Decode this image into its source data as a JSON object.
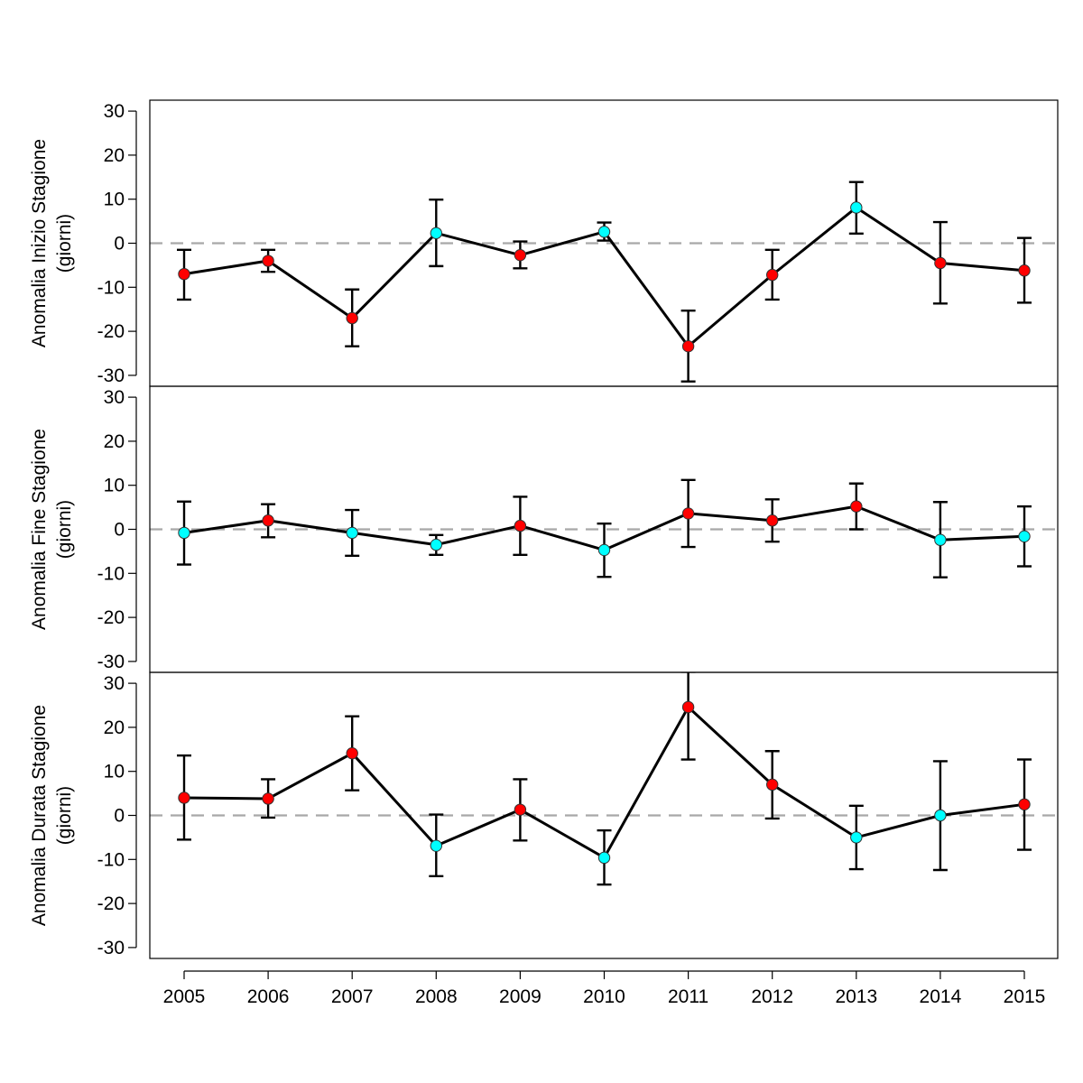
{
  "chart_data": [
    {
      "type": "line",
      "ylabel": "Anomalia Inizio Stagione",
      "ylabel_sub": "(giorni)",
      "ylim": [
        -30,
        30
      ],
      "yticks": [
        "30",
        "20",
        "10",
        "0",
        "-10",
        "-20",
        "-30"
      ],
      "x": [
        "2005",
        "2006",
        "2007",
        "2008",
        "2009",
        "2010",
        "2011",
        "2012",
        "2013",
        "2014",
        "2015"
      ],
      "values": [
        -7,
        -4,
        -17,
        2.3,
        -2.7,
        2.6,
        -23.4,
        -7.2,
        8.1,
        -4.5,
        -6.2
      ],
      "err_low": [
        -12.8,
        -6.5,
        -23.4,
        -5.2,
        -5.7,
        0.6,
        -31.4,
        -12.8,
        2.2,
        -13.7,
        -13.5
      ],
      "err_high": [
        -1.5,
        -1.5,
        -10.5,
        9.9,
        0.4,
        4.7,
        -15.3,
        -1.5,
        13.9,
        4.8,
        1.2
      ],
      "colors": [
        "#ff0000",
        "#ff0000",
        "#ff0000",
        "#00ffff",
        "#ff0000",
        "#00ffff",
        "#ff0000",
        "#ff0000",
        "#00ffff",
        "#ff0000",
        "#ff0000"
      ]
    },
    {
      "type": "line",
      "ylabel": "Anomalia Fine Stagione",
      "ylabel_sub": "(giorni)",
      "ylim": [
        -30,
        30
      ],
      "yticks": [
        "30",
        "20",
        "10",
        "0",
        "-10",
        "-20",
        "-30"
      ],
      "x": [
        "2005",
        "2006",
        "2007",
        "2008",
        "2009",
        "2010",
        "2011",
        "2012",
        "2013",
        "2014",
        "2015"
      ],
      "values": [
        -0.8,
        2,
        -0.8,
        -3.5,
        0.8,
        -4.7,
        3.6,
        2,
        5.2,
        -2.4,
        -1.6
      ],
      "err_low": [
        -8,
        -1.8,
        -6,
        -5.8,
        -5.8,
        -10.8,
        -4,
        -2.8,
        0,
        -10.9,
        -8.4
      ],
      "err_high": [
        6.3,
        5.7,
        4.4,
        -1.3,
        7.4,
        1.3,
        11.2,
        6.8,
        10.4,
        6.2,
        5.2
      ],
      "colors": [
        "#00ffff",
        "#ff0000",
        "#00ffff",
        "#00ffff",
        "#ff0000",
        "#00ffff",
        "#ff0000",
        "#ff0000",
        "#ff0000",
        "#00ffff",
        "#00ffff"
      ]
    },
    {
      "type": "line",
      "ylabel": "Anomalia Durata Stagione",
      "ylabel_sub": "(giorni)",
      "ylim": [
        -30,
        30
      ],
      "yticks": [
        "30",
        "20",
        "10",
        "0",
        "-10",
        "-20",
        "-30"
      ],
      "x": [
        "2005",
        "2006",
        "2007",
        "2008",
        "2009",
        "2010",
        "2011",
        "2012",
        "2013",
        "2014",
        "2015"
      ],
      "values": [
        4,
        3.8,
        14.1,
        -6.9,
        1.3,
        -9.6,
        24.6,
        7,
        -5,
        0,
        2.5
      ],
      "err_low": [
        -5.5,
        -0.5,
        5.7,
        -13.8,
        -5.7,
        -15.7,
        12.7,
        -0.7,
        -12.2,
        -12.4,
        -7.8
      ],
      "err_high": [
        13.6,
        8.2,
        22.5,
        0.2,
        8.2,
        -3.4,
        32.6,
        14.6,
        2.2,
        12.3,
        12.7
      ],
      "colors": [
        "#ff0000",
        "#ff0000",
        "#ff0000",
        "#00ffff",
        "#ff0000",
        "#00ffff",
        "#ff0000",
        "#ff0000",
        "#00ffff",
        "#00ffff",
        "#ff0000"
      ]
    }
  ]
}
